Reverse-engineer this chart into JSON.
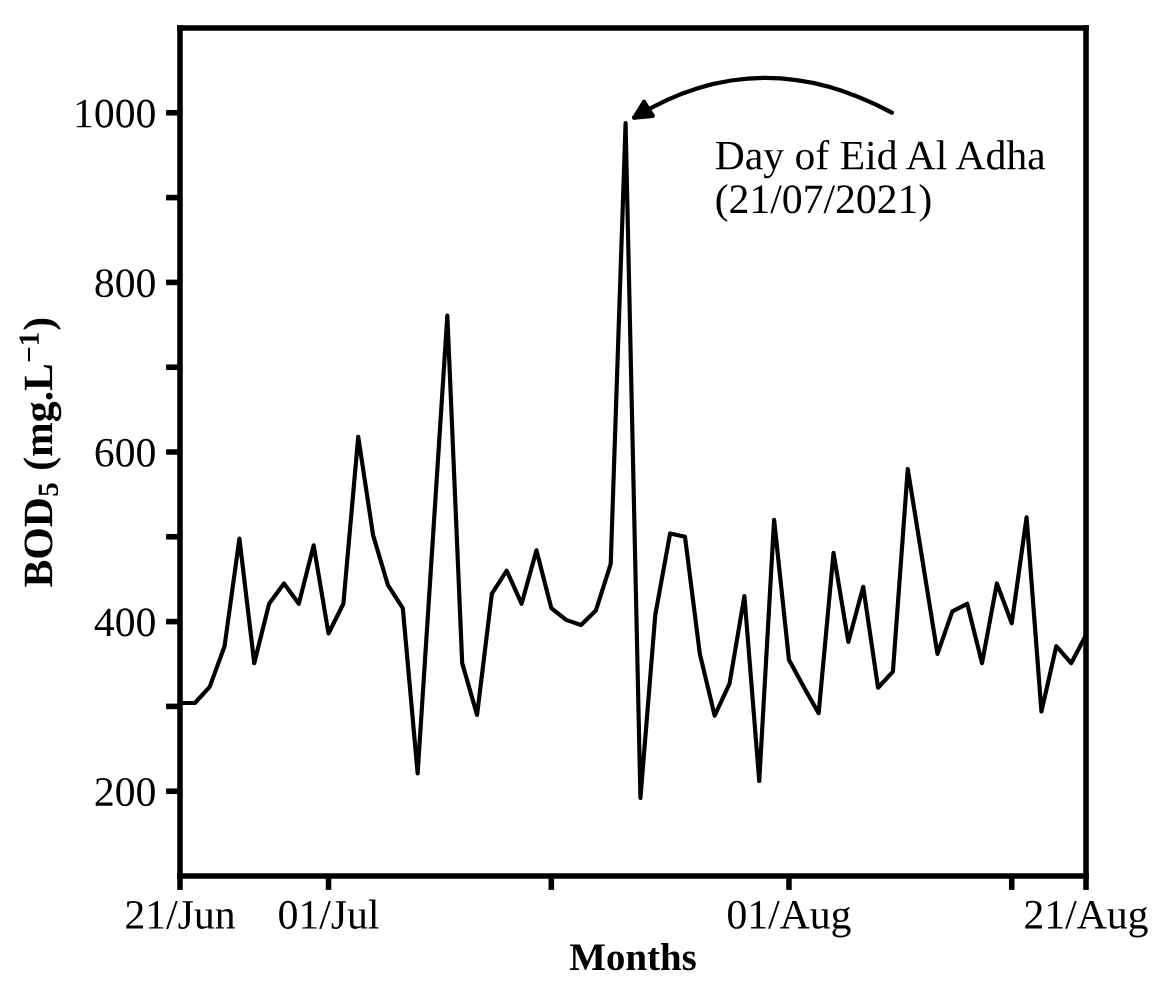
{
  "chart_data": {
    "type": "line",
    "xlabel": "Months",
    "ylabel": "BOD$_{5}$ (mg.L$^{−1}$)",
    "x": [
      "2021-06-21",
      "2021-06-22",
      "2021-06-23",
      "2021-06-24",
      "2021-06-25",
      "2021-06-26",
      "2021-06-27",
      "2021-06-28",
      "2021-06-29",
      "2021-06-30",
      "2021-07-01",
      "2021-07-02",
      "2021-07-03",
      "2021-07-04",
      "2021-07-05",
      "2021-07-06",
      "2021-07-07",
      "2021-07-08",
      "2021-07-09",
      "2021-07-10",
      "2021-07-11",
      "2021-07-12",
      "2021-07-13",
      "2021-07-14",
      "2021-07-15",
      "2021-07-16",
      "2021-07-17",
      "2021-07-18",
      "2021-07-19",
      "2021-07-20",
      "2021-07-21",
      "2021-07-22",
      "2021-07-23",
      "2021-07-24",
      "2021-07-25",
      "2021-07-26",
      "2021-07-27",
      "2021-07-28",
      "2021-07-29",
      "2021-07-30",
      "2021-07-31",
      "2021-08-01",
      "2021-08-02",
      "2021-08-03",
      "2021-08-04",
      "2021-08-05",
      "2021-08-06",
      "2021-08-07",
      "2021-08-08",
      "2021-08-09",
      "2021-08-10",
      "2021-08-11",
      "2021-08-12",
      "2021-08-13",
      "2021-08-14",
      "2021-08-15",
      "2021-08-16",
      "2021-08-17",
      "2021-08-18",
      "2021-08-19",
      "2021-08-20",
      "2021-08-21"
    ],
    "series": [
      {
        "color": "#000000",
        "values": [
          304,
          304,
          323,
          371,
          498,
          351,
          421,
          445,
          421,
          490,
          386,
          421,
          618,
          502,
          443,
          416,
          221,
          491,
          761,
          351,
          290,
          433,
          460,
          421,
          484,
          416,
          402,
          396,
          413,
          468,
          988,
          192,
          408,
          504,
          500,
          362,
          289,
          327,
          430,
          212,
          520,
          355,
          323,
          292,
          481,
          376,
          441,
          322,
          341,
          580,
          471,
          362,
          412,
          421,
          351,
          445,
          398,
          523,
          294,
          371,
          351,
          384
        ]
      }
    ],
    "xlim": [
      "2021-06-21",
      "2021-08-21"
    ],
    "xticks": [
      {
        "value": "2021-06-21",
        "label": "21/Jun"
      },
      {
        "value": "2021-07-01",
        "label": "01/Jul"
      },
      {
        "value": "2021-07-16",
        "label": null
      },
      {
        "value": "2021-08-01",
        "label": "01/Aug"
      },
      {
        "value": "2021-08-16",
        "label": null
      },
      {
        "value": "2021-08-21",
        "label": "21/Aug"
      }
    ],
    "ylim": [
      100,
      1100
    ],
    "yticks": [
      200,
      {
        "value": 300,
        "label": null
      },
      400,
      {
        "value": 500,
        "label": null
      },
      600,
      {
        "value": 700,
        "label": null
      },
      800,
      {
        "value": 900,
        "label": null
      },
      1000
    ],
    "annotations": [
      {
        "text": "Day of Eid Al Adha\n(21/07/2021)",
        "x": "2021-07-21",
        "y": 988
      }
    ],
    "grid": false,
    "legend": false,
    "marker": "none",
    "line_style": "solid"
  }
}
